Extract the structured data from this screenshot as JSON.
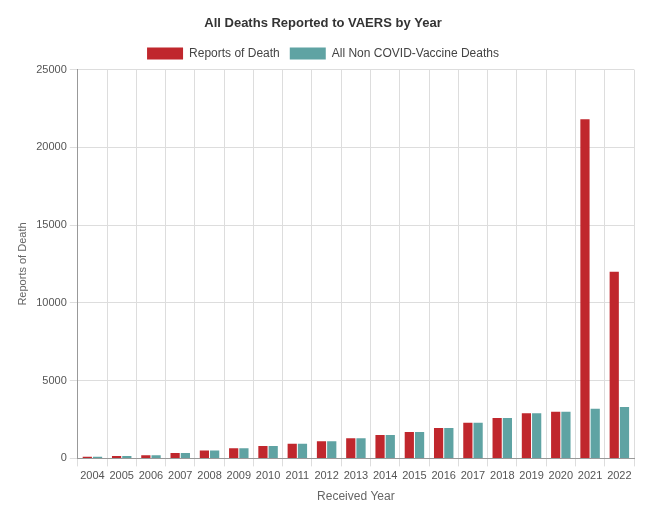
{
  "chart_data": {
    "type": "bar",
    "title": "All Deaths Reported to VAERS by Year",
    "x_label": "Received Year",
    "y_label": "Reports of Death",
    "categories": [
      "2004",
      "2005",
      "2006",
      "2007",
      "2008",
      "2009",
      "2010",
      "2011",
      "2012",
      "2013",
      "2014",
      "2015",
      "2016",
      "2017",
      "2018",
      "2019",
      "2020",
      "2021",
      "2022"
    ],
    "series": [
      {
        "name": "Reports of Death",
        "color": "#c0272d",
        "values": [
          100,
          150,
          200,
          350,
          500,
          650,
          800,
          950,
          1100,
          1300,
          1500,
          1700,
          1950,
          2300,
          2600,
          2900,
          3000,
          21800,
          12000
        ]
      },
      {
        "name": "All Non COVID-Vaccine Deaths",
        "color": "#5fa3a3",
        "values": [
          100,
          150,
          200,
          350,
          500,
          650,
          800,
          950,
          1100,
          1300,
          1500,
          1700,
          1950,
          2300,
          2600,
          2900,
          3000,
          3200,
          3300
        ]
      }
    ],
    "ylim": [
      0,
      25000
    ],
    "yticks": [
      0,
      5000,
      10000,
      15000,
      20000,
      25000
    ],
    "grid": true,
    "legend": "top"
  }
}
